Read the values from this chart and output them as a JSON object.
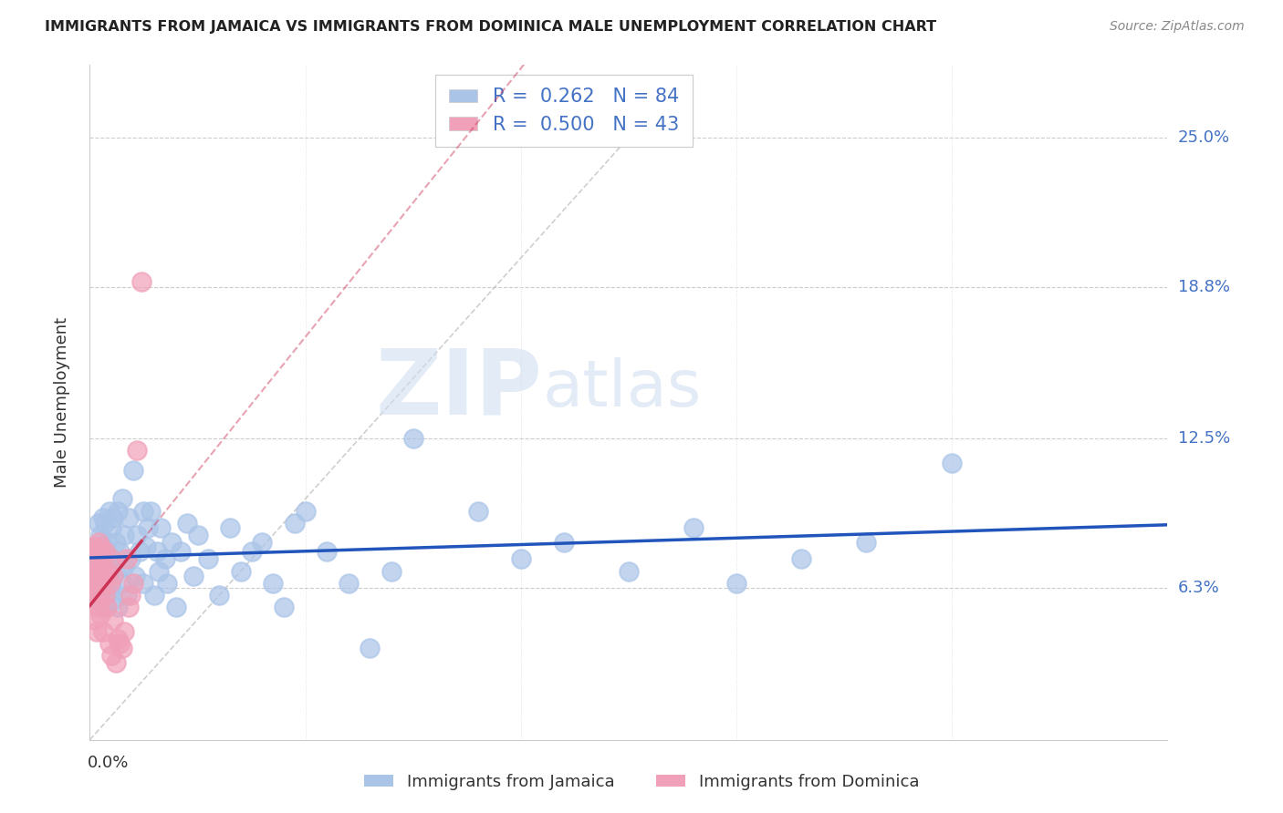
{
  "title": "IMMIGRANTS FROM JAMAICA VS IMMIGRANTS FROM DOMINICA MALE UNEMPLOYMENT CORRELATION CHART",
  "source": "Source: ZipAtlas.com",
  "ylabel": "Male Unemployment",
  "ytick_labels": [
    "6.3%",
    "12.5%",
    "18.8%",
    "25.0%"
  ],
  "ytick_values": [
    0.063,
    0.125,
    0.188,
    0.25
  ],
  "xlim": [
    0.0,
    0.5
  ],
  "ylim": [
    0.0,
    0.28
  ],
  "jamaica_R": 0.262,
  "jamaica_N": 84,
  "dominica_R": 0.5,
  "dominica_N": 43,
  "jamaica_color": "#aac4e8",
  "dominica_color": "#f0a0b8",
  "jamaica_line_color": "#2255bb",
  "dominica_line_color": "#cc3355",
  "legend_jamaica": "Immigrants from Jamaica",
  "legend_dominica": "Immigrants from Dominica",
  "jamaica_x": [
    0.001,
    0.002,
    0.002,
    0.003,
    0.003,
    0.004,
    0.004,
    0.004,
    0.005,
    0.005,
    0.005,
    0.006,
    0.006,
    0.006,
    0.007,
    0.007,
    0.007,
    0.008,
    0.008,
    0.008,
    0.009,
    0.009,
    0.01,
    0.01,
    0.01,
    0.011,
    0.011,
    0.012,
    0.012,
    0.013,
    0.013,
    0.014,
    0.015,
    0.015,
    0.016,
    0.016,
    0.017,
    0.018,
    0.019,
    0.02,
    0.021,
    0.022,
    0.023,
    0.025,
    0.025,
    0.026,
    0.027,
    0.028,
    0.03,
    0.031,
    0.032,
    0.033,
    0.035,
    0.036,
    0.038,
    0.04,
    0.042,
    0.045,
    0.048,
    0.05,
    0.055,
    0.06,
    0.065,
    0.07,
    0.075,
    0.08,
    0.085,
    0.09,
    0.095,
    0.1,
    0.11,
    0.12,
    0.13,
    0.14,
    0.15,
    0.18,
    0.2,
    0.22,
    0.25,
    0.28,
    0.3,
    0.33,
    0.36,
    0.4
  ],
  "jamaica_y": [
    0.07,
    0.075,
    0.06,
    0.08,
    0.065,
    0.09,
    0.072,
    0.058,
    0.085,
    0.068,
    0.075,
    0.092,
    0.063,
    0.08,
    0.055,
    0.078,
    0.09,
    0.068,
    0.082,
    0.06,
    0.095,
    0.072,
    0.065,
    0.088,
    0.075,
    0.058,
    0.092,
    0.07,
    0.082,
    0.055,
    0.095,
    0.078,
    0.065,
    0.1,
    0.072,
    0.085,
    0.06,
    0.092,
    0.075,
    0.112,
    0.068,
    0.085,
    0.078,
    0.095,
    0.065,
    0.08,
    0.088,
    0.095,
    0.06,
    0.078,
    0.07,
    0.088,
    0.075,
    0.065,
    0.082,
    0.055,
    0.078,
    0.09,
    0.068,
    0.085,
    0.075,
    0.06,
    0.088,
    0.07,
    0.078,
    0.082,
    0.065,
    0.055,
    0.09,
    0.095,
    0.078,
    0.065,
    0.038,
    0.07,
    0.125,
    0.095,
    0.075,
    0.082,
    0.07,
    0.088,
    0.065,
    0.075,
    0.082,
    0.115
  ],
  "dominica_x": [
    0.001,
    0.001,
    0.001,
    0.002,
    0.002,
    0.002,
    0.002,
    0.003,
    0.003,
    0.003,
    0.003,
    0.004,
    0.004,
    0.004,
    0.005,
    0.005,
    0.005,
    0.005,
    0.006,
    0.006,
    0.006,
    0.007,
    0.007,
    0.007,
    0.008,
    0.008,
    0.009,
    0.009,
    0.01,
    0.01,
    0.011,
    0.011,
    0.012,
    0.013,
    0.014,
    0.015,
    0.016,
    0.017,
    0.018,
    0.019,
    0.02,
    0.022,
    0.024
  ],
  "dominica_y": [
    0.068,
    0.058,
    0.075,
    0.065,
    0.072,
    0.05,
    0.08,
    0.06,
    0.07,
    0.045,
    0.078,
    0.065,
    0.055,
    0.082,
    0.06,
    0.07,
    0.052,
    0.08,
    0.065,
    0.045,
    0.075,
    0.06,
    0.078,
    0.068,
    0.055,
    0.07,
    0.065,
    0.04,
    0.075,
    0.035,
    0.068,
    0.05,
    0.032,
    0.042,
    0.04,
    0.038,
    0.045,
    0.075,
    0.055,
    0.06,
    0.065,
    0.12,
    0.19
  ],
  "ref_line_end": 0.275
}
